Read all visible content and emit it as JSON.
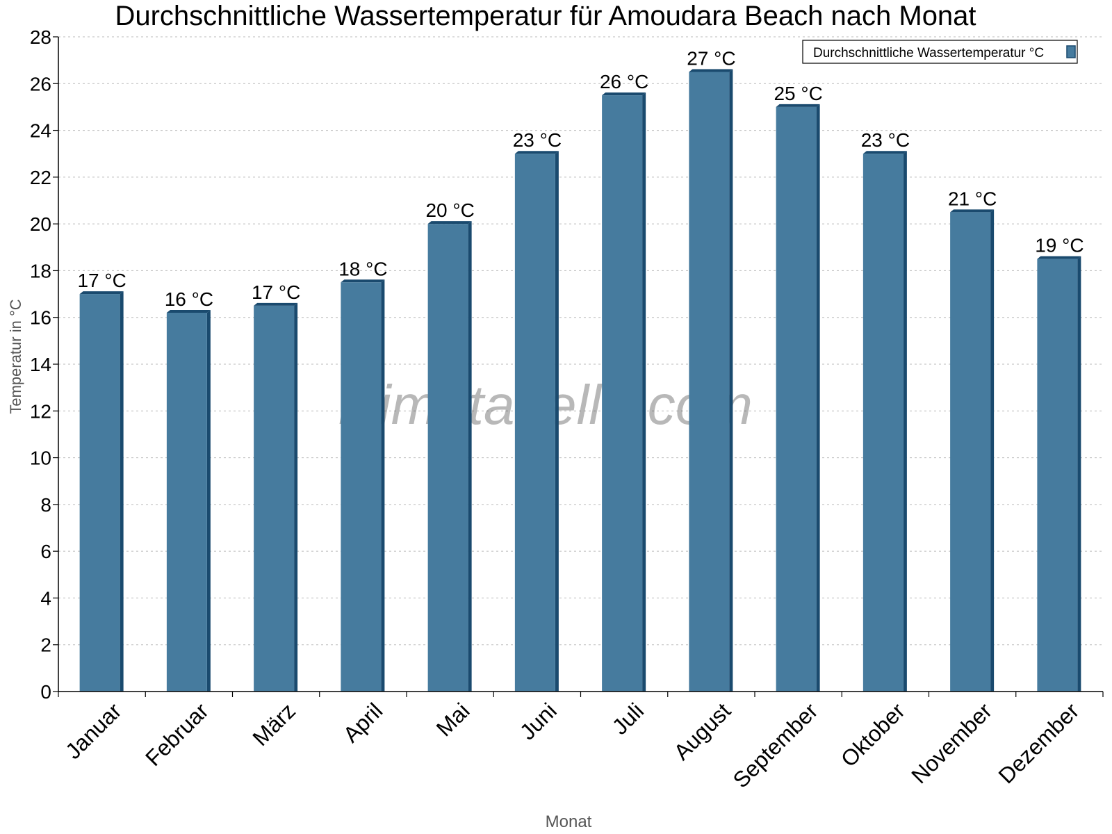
{
  "chart_data": {
    "type": "bar",
    "title": "Durchschnittliche Wassertemperatur für Amoudara Beach nach Monat",
    "xlabel": "Monat",
    "ylabel": "Temperatur in °C",
    "categories": [
      "Januar",
      "Februar",
      "März",
      "April",
      "Mai",
      "Juni",
      "Juli",
      "August",
      "September",
      "Oktober",
      "November",
      "Dezember"
    ],
    "series": [
      {
        "name": "Durchschnittliche Wassertemperatur °C",
        "values": [
          17.0,
          16.2,
          16.5,
          17.5,
          20.0,
          23.0,
          25.5,
          26.5,
          25.0,
          23.0,
          20.5,
          18.5
        ],
        "labels": [
          "17 °C",
          "16 °C",
          "17 °C",
          "18 °C",
          "20 °C",
          "23 °C",
          "26 °C",
          "27 °C",
          "25 °C",
          "23 °C",
          "21 °C",
          "19 °C"
        ]
      }
    ],
    "ylim": [
      0,
      28
    ],
    "yticks": [
      0,
      2,
      4,
      6,
      8,
      10,
      12,
      14,
      16,
      18,
      20,
      22,
      24,
      26,
      28
    ],
    "grid": true,
    "legend": "top-right",
    "colors": {
      "bar": "#467b9e",
      "bar_side": "#1a4a6e"
    },
    "watermark": "klimatabelle.com"
  }
}
